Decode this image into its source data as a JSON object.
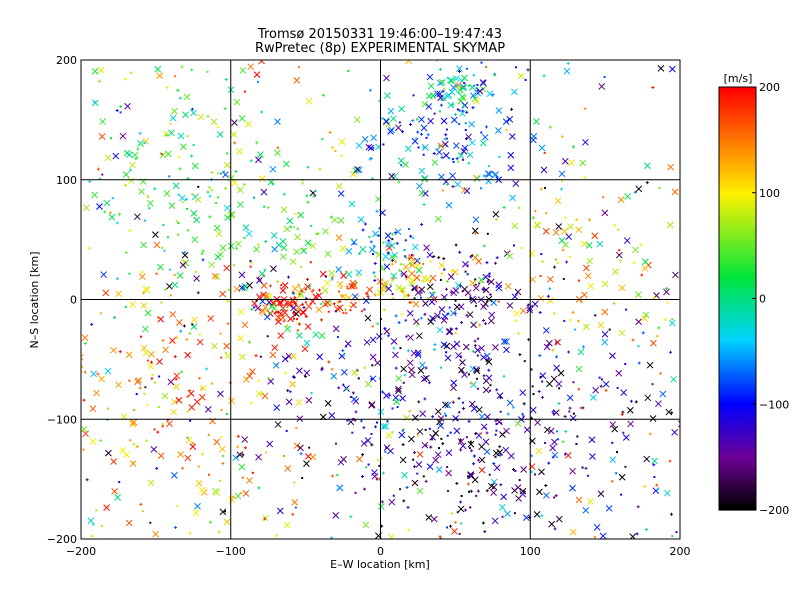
{
  "chart_data": {
    "type": "scatter",
    "title": "Tromsø 20150331 19:46:00–19:47:43",
    "subtitle": "RwPretec (8p) EXPERIMENTAL SKYMAP",
    "xlabel": "E–W location [km]",
    "ylabel": "N–S location [km]",
    "xlim": [
      -200,
      200
    ],
    "ylim": [
      -200,
      200
    ],
    "xticks": [
      -200,
      -100,
      0,
      100,
      200
    ],
    "yticks": [
      -200,
      -100,
      0,
      100,
      200
    ],
    "grid": true,
    "colorbar": {
      "label": "[m/s]",
      "range": [
        -200,
        200
      ],
      "ticks": [
        200,
        100,
        0,
        -100,
        -200
      ],
      "colormap": "rainbow (black → purple → blue → cyan → green → yellow → red)"
    },
    "markers": [
      "x",
      "+",
      "."
    ],
    "clusters": [
      {
        "x": 50,
        "y": 175,
        "spread": 10,
        "velocity": -30,
        "count": 60
      },
      {
        "x": 45,
        "y": 125,
        "spread": 28,
        "velocity": -90,
        "count": 130
      },
      {
        "x": 5,
        "y": 45,
        "spread": 12,
        "velocity": -50,
        "count": 45
      },
      {
        "x": 20,
        "y": 15,
        "spread": 12,
        "velocity": 110,
        "count": 60
      },
      {
        "x": -62,
        "y": -2,
        "spread": 12,
        "velocity": 190,
        "count": 75
      },
      {
        "x": -25,
        "y": 5,
        "spread": 10,
        "velocity": 150,
        "count": 40
      },
      {
        "x": 55,
        "y": 5,
        "spread": 18,
        "velocity": -160,
        "count": 80
      },
      {
        "x": -80,
        "y": 60,
        "spread": 45,
        "velocity": 40,
        "count": 160
      },
      {
        "x": 30,
        "y": -80,
        "spread": 55,
        "velocity": -120,
        "count": 260
      },
      {
        "x": 60,
        "y": -130,
        "spread": 45,
        "velocity": -170,
        "count": 140
      },
      {
        "x": -110,
        "y": -120,
        "spread": 50,
        "velocity": 120,
        "count": 110
      },
      {
        "x": -150,
        "y": -50,
        "spread": 40,
        "velocity": 150,
        "count": 90
      },
      {
        "x": -140,
        "y": 120,
        "spread": 40,
        "velocity": 30,
        "count": 90
      },
      {
        "x": 140,
        "y": 40,
        "spread": 40,
        "velocity": 100,
        "count": 90
      },
      {
        "x": 130,
        "y": -100,
        "spread": 50,
        "velocity": -150,
        "count": 100
      },
      {
        "x": 0,
        "y": 0,
        "spread": 200,
        "velocity": 0,
        "count": 420
      }
    ]
  }
}
